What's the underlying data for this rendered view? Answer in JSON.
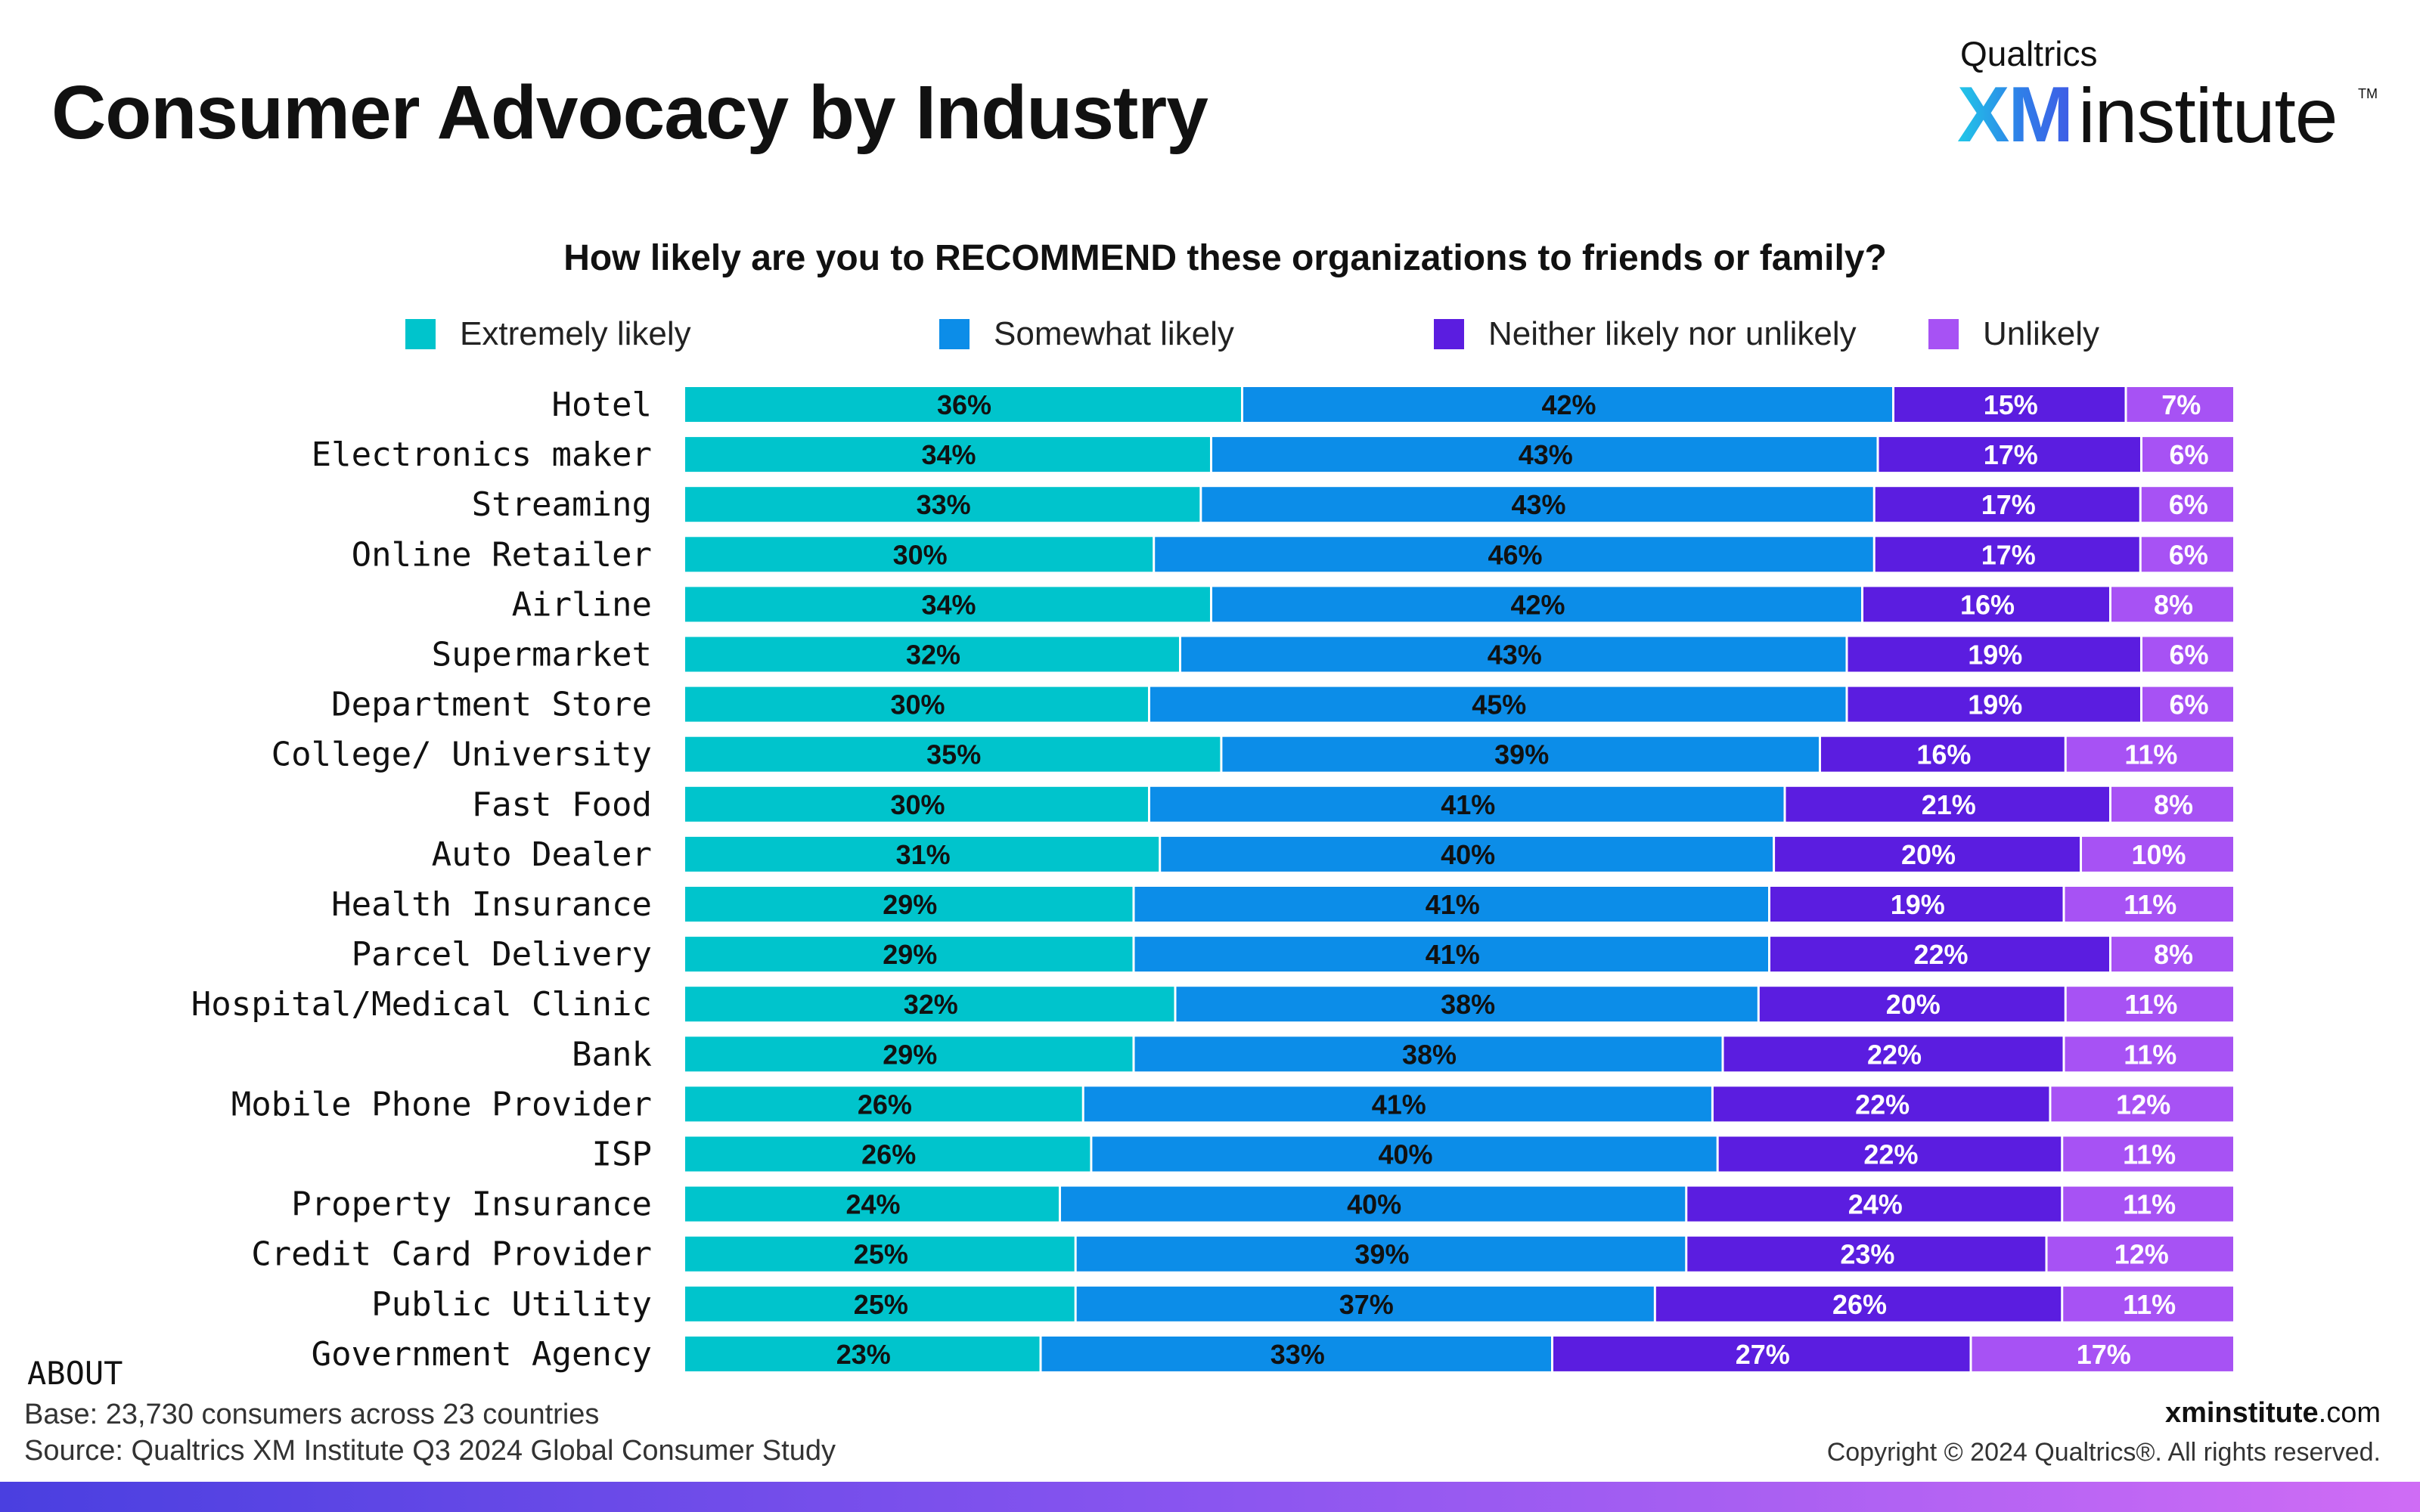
{
  "title": "Consumer Advocacy by Industry",
  "logo": {
    "brand": "Qualtrics",
    "xm": "XM",
    "institute": "institute",
    "tm": "TM"
  },
  "chart_data": {
    "type": "bar",
    "orientation": "horizontal",
    "stacked": true,
    "title": "How likely are you to RECOMMEND these organizations to friends or family?",
    "xlabel": "",
    "ylabel": "",
    "xlim": [
      0,
      100
    ],
    "legend_position": "top",
    "categories": [
      "Hotel",
      "Electronics maker",
      "Streaming",
      "Online Retailer",
      "Airline",
      "Supermarket",
      "Department Store",
      "College/ University",
      "Fast Food",
      "Auto Dealer",
      "Health Insurance",
      "Parcel Delivery",
      "Hospital/Medical Clinic",
      "Bank",
      "Mobile Phone Provider",
      "ISP",
      "Property Insurance",
      "Credit Card Provider",
      "Public Utility",
      "Government Agency"
    ],
    "series": [
      {
        "name": "Extremely likely",
        "color": "#00c4cc",
        "label_color": "#111111",
        "values": [
          36,
          34,
          33,
          30,
          34,
          32,
          30,
          35,
          30,
          31,
          29,
          29,
          32,
          29,
          26,
          26,
          24,
          25,
          25,
          23
        ]
      },
      {
        "name": "Somewhat likely",
        "color": "#0c8de8",
        "label_color": "#111111",
        "values": [
          42,
          43,
          43,
          46,
          42,
          43,
          45,
          39,
          41,
          40,
          41,
          41,
          38,
          38,
          41,
          40,
          40,
          39,
          37,
          33
        ]
      },
      {
        "name": "Neither likely nor unlikely",
        "color": "#5b1de0",
        "label_color": "#ffffff",
        "values": [
          15,
          17,
          17,
          17,
          16,
          19,
          19,
          16,
          21,
          20,
          19,
          22,
          20,
          22,
          22,
          22,
          24,
          23,
          26,
          27
        ]
      },
      {
        "name": "Unlikely",
        "color": "#a752f4",
        "label_color": "#ffffff",
        "values": [
          7,
          6,
          6,
          6,
          8,
          6,
          6,
          11,
          8,
          10,
          11,
          8,
          11,
          11,
          12,
          11,
          11,
          12,
          11,
          17
        ]
      }
    ]
  },
  "footer": {
    "about": "ABOUT",
    "base_label": "Base:",
    "base_text": "23,730 consumers across 23 countries",
    "source_label": "Source:",
    "source_text": "Qualtrics XM Institute Q3 2024 Global Consumer Study",
    "site_bold": "xminstitute",
    "site_rest": ".com",
    "copyright": "Copyright © 2024 Qualtrics®. All rights reserved."
  }
}
